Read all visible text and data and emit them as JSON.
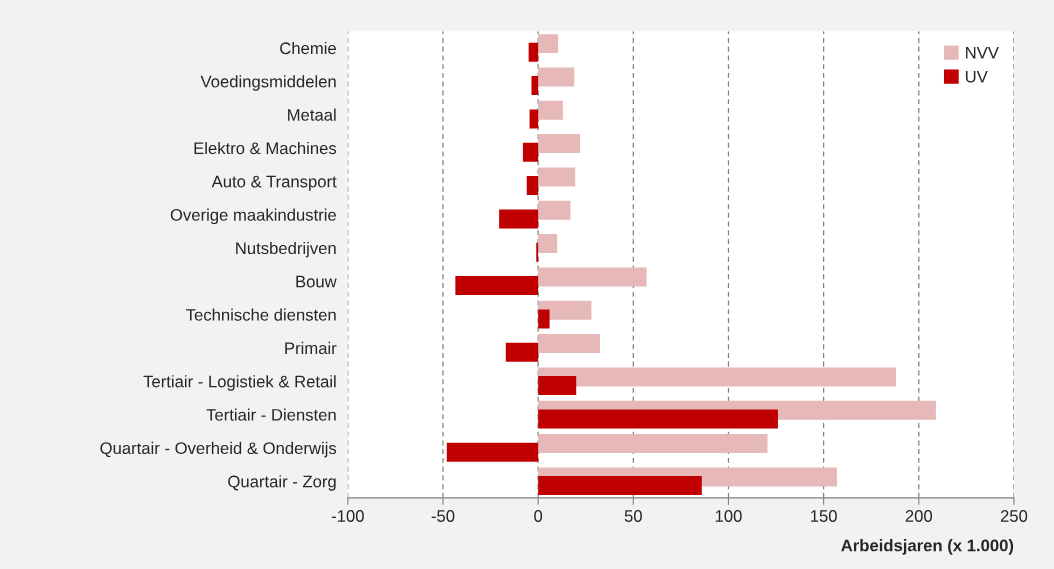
{
  "chart_data": {
    "type": "bar",
    "orientation": "horizontal",
    "categories": [
      "Chemie",
      "Voedingsmiddelen",
      "Metaal",
      "Elektro & Machines",
      "Auto & Transport",
      "Overige maakindustrie",
      "Nutsbedrijven",
      "Bouw",
      "Technische diensten",
      "Primair",
      "Tertiair - Logistiek & Retail",
      "Tertiair - Diensten",
      "Quartair - Overheid & Onderwijs",
      "Quartair - Zorg"
    ],
    "series": [
      {
        "name": "NVV",
        "color": "#e6b9b8",
        "values": [
          10.5,
          19,
          13,
          22,
          19.5,
          17,
          10,
          57,
          28,
          32.5,
          188,
          209,
          120.5,
          157
        ]
      },
      {
        "name": "UV",
        "color": "#c00000",
        "values": [
          -5,
          -3.5,
          -4.5,
          -8,
          -6,
          -20.5,
          -1,
          -43.5,
          6,
          -17,
          20,
          126,
          -48,
          86
        ]
      }
    ],
    "xlabel": "Arbeidsjaren (x 1.000)",
    "xlim": [
      -100,
      250
    ],
    "xticks": [
      -100,
      -50,
      0,
      50,
      100,
      150,
      200,
      250
    ],
    "grid": "x",
    "legend": "top right"
  }
}
